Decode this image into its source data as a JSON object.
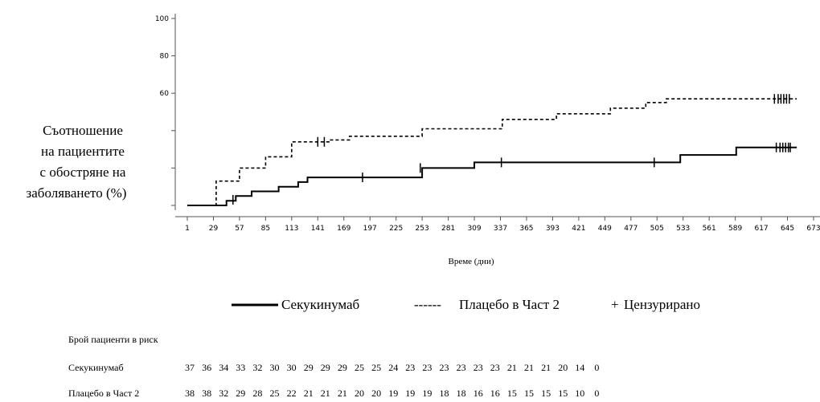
{
  "chart_data": {
    "type": "line",
    "step": true,
    "ylabel_lines": [
      "Съотношение",
      "на пациентите",
      "с обостряне на",
      "заболяването (%)"
    ],
    "xlabel": "Време (дни)",
    "y_tick_labels": [
      {
        "value": 0,
        "text": ""
      },
      {
        "value": 20,
        "text": ""
      },
      {
        "value": 40,
        "text": ""
      },
      {
        "value": 60,
        "text": "60"
      },
      {
        "value": 80,
        "text": "80"
      },
      {
        "value": 100,
        "text": "100"
      }
    ],
    "ylim": [
      0,
      100
    ],
    "x_ticks": [
      1,
      29,
      57,
      85,
      113,
      141,
      169,
      197,
      225,
      253,
      281,
      309,
      337,
      365,
      393,
      421,
      449,
      477,
      505,
      533,
      561,
      589,
      617,
      645,
      673
    ],
    "xlim": [
      1,
      673
    ],
    "series": [
      {
        "name": "Секукинумаб",
        "color": "#000000",
        "dash": "solid",
        "x": [
          1,
          29,
          43,
          53,
          70,
          99,
          120,
          130,
          253,
          309,
          530,
          590,
          655
        ],
        "y": [
          0,
          0,
          2.5,
          5,
          7.5,
          10,
          12.5,
          15,
          20,
          23,
          27,
          31,
          31
        ],
        "censored": [
          [
            50,
            3
          ],
          [
            189,
            15
          ],
          [
            251,
            20
          ],
          [
            338,
            23
          ],
          [
            502,
            23
          ],
          [
            633,
            31
          ],
          [
            637,
            31
          ],
          [
            640,
            31
          ],
          [
            643,
            31
          ],
          [
            646,
            31
          ],
          [
            648,
            31
          ]
        ]
      },
      {
        "name": "Плацебо в Част 2",
        "color": "#000000",
        "dash": "dashed",
        "x": [
          1,
          28,
          32,
          57,
          85,
          113,
          153,
          175,
          253,
          339,
          397,
          455,
          493,
          515,
          655
        ],
        "y": [
          0,
          0,
          13,
          20,
          26,
          34,
          35,
          37,
          41,
          46,
          49,
          52,
          55,
          57,
          57
        ],
        "censored": [
          [
            141,
            34
          ],
          [
            148,
            34
          ],
          [
            631,
            57
          ],
          [
            635,
            57
          ],
          [
            638,
            57
          ],
          [
            641,
            57
          ],
          [
            644,
            57
          ],
          [
            647,
            57
          ]
        ]
      }
    ],
    "legend": {
      "position": "bottom",
      "items": [
        {
          "marker": "solid",
          "label": "Секукинумаб"
        },
        {
          "marker": "------",
          "label": "Плацебо в Част 2"
        },
        {
          "marker": "+",
          "label": "Цензурирано"
        }
      ]
    },
    "risk_table": {
      "title": "Брой пациенти в риск",
      "rows": [
        {
          "label": "Секукинумаб",
          "values": [
            "37",
            "36",
            "34",
            "33",
            "32",
            "30",
            "30",
            "29",
            "29",
            "29",
            "25",
            "25",
            "24",
            "23",
            "23",
            "23",
            "23",
            "23",
            "23",
            "21",
            "21",
            "21",
            "20",
            "14",
            "0"
          ]
        },
        {
          "label": "Плацебо в Част 2",
          "values": [
            "38",
            "38",
            "32",
            "29",
            "28",
            "25",
            "22",
            "21",
            "21",
            "21",
            "20",
            "20",
            "19",
            "19",
            "19",
            "18",
            "18",
            "16",
            "16",
            "15",
            "15",
            "15",
            "15",
            "10",
            "0"
          ]
        }
      ]
    }
  }
}
